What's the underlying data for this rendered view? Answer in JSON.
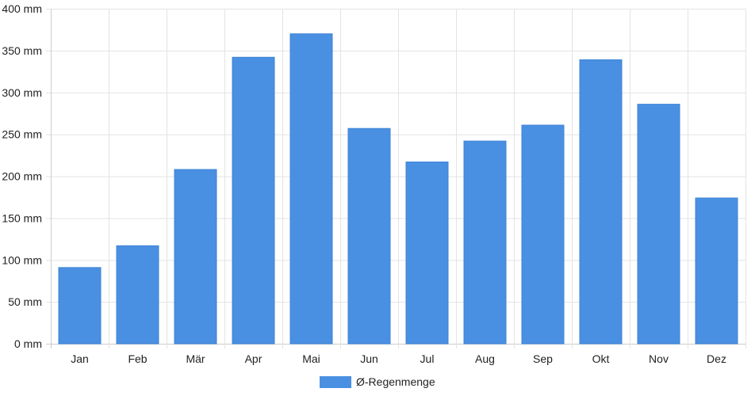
{
  "chart_data": {
    "type": "bar",
    "categories": [
      "Jan",
      "Feb",
      "Mär",
      "Apr",
      "Mai",
      "Jun",
      "Jul",
      "Aug",
      "Sep",
      "Okt",
      "Nov",
      "Dez"
    ],
    "series": [
      {
        "name": "Ø-Regenmenge",
        "color": "#4a90e2",
        "values": [
          91,
          117,
          208,
          342,
          370,
          257,
          217,
          242,
          261,
          339,
          286,
          174
        ]
      }
    ],
    "ylim": [
      0,
      400
    ],
    "y_ticks": [
      "0 mm",
      "50 mm",
      "100 mm",
      "150 mm",
      "200 mm",
      "250 mm",
      "300 mm",
      "350 mm",
      "400 mm"
    ],
    "y_tick_values": [
      0,
      50,
      100,
      150,
      200,
      250,
      300,
      350,
      400
    ],
    "grid": true,
    "legend_position": "bottom-center"
  },
  "colors": {
    "bar": "#4a90e2",
    "grid": "#e3e3e3",
    "axis": "#cccccc"
  }
}
